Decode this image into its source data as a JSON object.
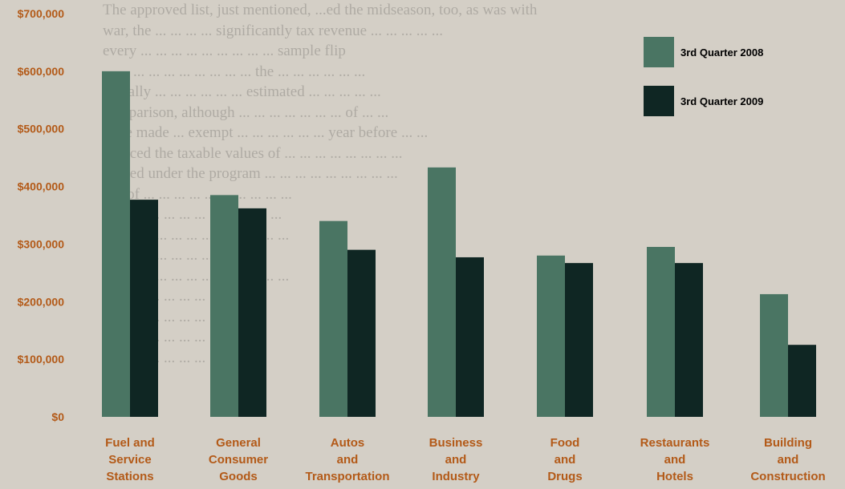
{
  "background_text_lines": [
    "The approved list, just mentioned, ...ed the midseason, too, as was with",
    "war, the ... ... ... ... significantly tax revenue ... ... ... ... ...",
    "every ... ... ... ... ... ... ... ... ... sample flip",
    "... ... ... ... ... ... ... ... ... ... the ... ... ... ... ... ...",
    "actually ... ... ... ... ... ... estimated ... ... ... ... ...",
    "comparison, although ... ... ... ... ... ... ... of ... ...",
    "were made ... exempt ... ... ... ... ... ... year before ... ...",
    "reduced the taxable values of ... ... ... ... ... ... ... ...",
    "chased under the program ... ... ... ... ... ... ... ... ...",
    "use of ... ... ... ... ... ... ... ... ... ...",
    "... ... ... ... ... ... ... ... ... ... ... ...",
    "the ... ... ... ... ... ... ... ... ... ... ...",
    "... about ... ... ... ... ... ... ...",
    "... the ... ... ... ... ... ... ... ... ... ...",
    "... ... ... ... ... ... ... ... ... ... ...",
    "... ... ... ... ... ... ... ... ... ... ...",
    "... ... ... ... ... ... ... ... ... ... ...",
    "... ... ... ... ... ... ... ... ... ... ..."
  ],
  "chart_data": {
    "type": "bar",
    "title": "",
    "xlabel": "",
    "ylabel": "",
    "ylim": [
      0,
      700000
    ],
    "yticks": [
      0,
      100000,
      200000,
      300000,
      400000,
      500000,
      600000,
      700000
    ],
    "ytick_labels": [
      "$0",
      "$100,000",
      "$200,000",
      "$300,000",
      "$400,000",
      "$500,000",
      "$600,000",
      "$700,000"
    ],
    "categories": [
      [
        "Fuel and",
        "Service",
        "Stations"
      ],
      [
        "General",
        "Consumer",
        "Goods"
      ],
      [
        "Autos",
        "and",
        "Transportation"
      ],
      [
        "Business",
        "and",
        "Industry"
      ],
      [
        "Food",
        "and",
        "Drugs"
      ],
      [
        "Restaurants",
        "and",
        "Hotels"
      ],
      [
        "Building",
        "and",
        "Construction"
      ]
    ],
    "series": [
      {
        "name": "3rd Quarter 2008",
        "color": "#4a7563",
        "values": [
          600000,
          385000,
          340000,
          433000,
          280000,
          295000,
          213000
        ]
      },
      {
        "name": "3rd Quarter 2009",
        "color": "#0f2623",
        "values": [
          377000,
          362000,
          290000,
          277000,
          267000,
          267000,
          125000
        ]
      }
    ],
    "legend": "top-right",
    "grid": false
  }
}
